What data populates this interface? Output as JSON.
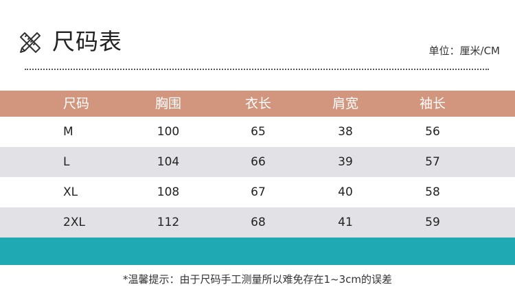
{
  "header": {
    "title": "尺码表",
    "unit": "单位：厘米/CM",
    "icon": "ruler-pencil-icon"
  },
  "table": {
    "columns": [
      "尺码",
      "胸围",
      "衣长",
      "肩宽",
      "袖长"
    ],
    "rows": [
      [
        "M",
        "100",
        "65",
        "38",
        "56"
      ],
      [
        "L",
        "104",
        "66",
        "39",
        "57"
      ],
      [
        "XL",
        "108",
        "67",
        "40",
        "58"
      ],
      [
        "2XL",
        "112",
        "68",
        "41",
        "59"
      ]
    ]
  },
  "colors": {
    "header_row": "#d2957d",
    "shaded_row": "#e2e1e6",
    "accent_bar": "#1fa9b2"
  },
  "footer": {
    "note": "*温馨提示：由于尺码手工测量所以难免存在1~3cm的误差"
  }
}
